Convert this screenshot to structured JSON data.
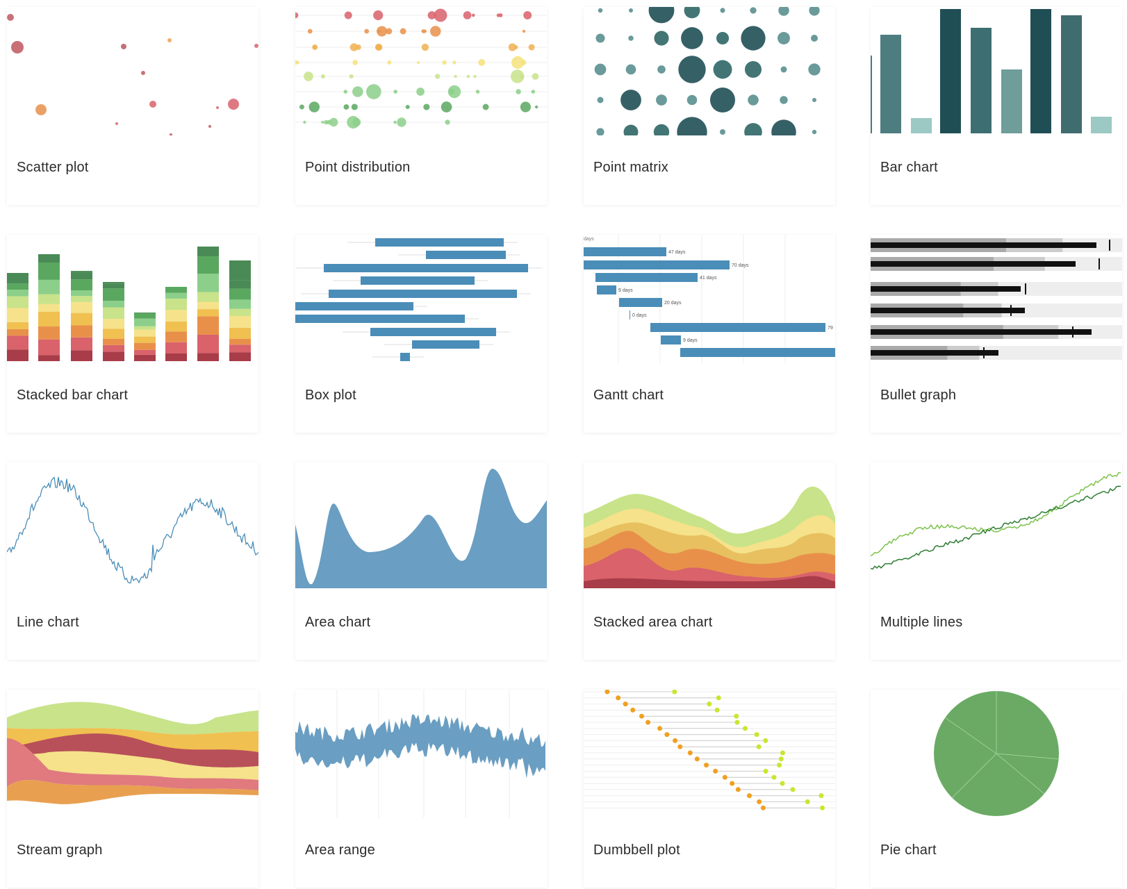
{
  "gallery": {
    "items": [
      {
        "id": "scatter-plot",
        "label": "Scatter plot"
      },
      {
        "id": "point-distribution",
        "label": "Point distribution"
      },
      {
        "id": "point-matrix",
        "label": "Point matrix"
      },
      {
        "id": "bar-chart",
        "label": "Bar chart"
      },
      {
        "id": "stacked-bar-chart",
        "label": "Stacked bar chart"
      },
      {
        "id": "box-plot",
        "label": "Box plot"
      },
      {
        "id": "gantt-chart",
        "label": "Gantt chart"
      },
      {
        "id": "bullet-graph",
        "label": "Bullet graph"
      },
      {
        "id": "line-chart",
        "label": "Line chart"
      },
      {
        "id": "area-chart",
        "label": "Area chart"
      },
      {
        "id": "stacked-area-chart",
        "label": "Stacked area chart"
      },
      {
        "id": "multiple-lines",
        "label": "Multiple lines"
      },
      {
        "id": "stream-graph",
        "label": "Stream graph"
      },
      {
        "id": "area-range",
        "label": "Area range"
      },
      {
        "id": "dumbbell-plot",
        "label": "Dumbbell plot"
      },
      {
        "id": "pie-chart",
        "label": "Pie chart"
      }
    ]
  },
  "thumbnails": {
    "gantt": {
      "header_label": "days",
      "bar_labels": [
        "47 days",
        "70 days",
        "41 days",
        "9 days",
        "20 days",
        "0 days",
        "79",
        "9 days"
      ]
    }
  },
  "colors": {
    "blue": "#4a8db8",
    "area_blue": "#6a9ec2",
    "teal_dark": "#1f4f55",
    "teal_mid": "#4a7a7d",
    "teal_light": "#9cc9c4",
    "green": "#6aaa64",
    "label_text": "#2b2b2b"
  }
}
